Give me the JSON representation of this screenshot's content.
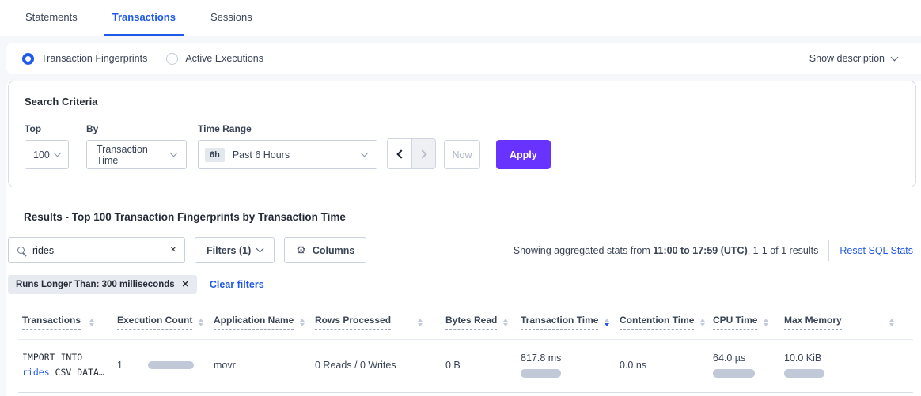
{
  "tabs": [
    {
      "label": "Statements",
      "active": false
    },
    {
      "label": "Transactions",
      "active": true
    },
    {
      "label": "Sessions",
      "active": false
    }
  ],
  "view_toggle": {
    "options": [
      {
        "label": "Transaction Fingerprints",
        "selected": true
      },
      {
        "label": "Active Executions",
        "selected": false
      }
    ],
    "show_description": "Show description"
  },
  "search_criteria": {
    "title": "Search Criteria",
    "top": {
      "label": "Top",
      "value": "100"
    },
    "by": {
      "label": "By",
      "value": "Transaction Time"
    },
    "time_range": {
      "label": "Time Range",
      "badge": "6h",
      "value": "Past 6 Hours"
    },
    "now_label": "Now",
    "apply_label": "Apply"
  },
  "results": {
    "heading": "Results - Top 100 Transaction Fingerprints by Transaction Time",
    "search_value": "rides",
    "filters_label": "Filters (1)",
    "columns_label": "Columns",
    "stats_prefix": "Showing aggregated stats from",
    "stats_range": "11:00 to 17:59 (UTC)",
    "stats_suffix": ", 1-1 of 1 results",
    "reset_label": "Reset SQL Stats",
    "filter_tag": "Runs Longer Than: 300 milliseconds",
    "clear_filters_label": "Clear filters"
  },
  "table": {
    "columns": [
      {
        "label": "Transactions",
        "sort": "none"
      },
      {
        "label": "Execution Count",
        "sort": "none"
      },
      {
        "label": "Application Name",
        "sort": "none"
      },
      {
        "label": "Rows Processed",
        "sort": "none"
      },
      {
        "label": "Bytes Read",
        "sort": "none"
      },
      {
        "label": "Transaction Time",
        "sort": "desc"
      },
      {
        "label": "Contention Time",
        "sort": "none"
      },
      {
        "label": "CPU Time",
        "sort": "none"
      },
      {
        "label": "Max Memory",
        "sort": "none"
      }
    ],
    "row": {
      "transaction_line1": "IMPORT INTO",
      "transaction_link": "rides",
      "transaction_line2_rest": " CSV DATA…",
      "execution_count": "1",
      "application_name": "movr",
      "rows_processed": "0 Reads / 0 Writes",
      "bytes_read": "0 B",
      "transaction_time": "817.8 ms",
      "contention_time": "0.0 ns",
      "cpu_time": "64.0 µs",
      "max_memory": "10.0 KiB"
    }
  },
  "icons": {
    "gear": "⚙",
    "close": "✕"
  },
  "colors": {
    "accent_blue": "#2058e8",
    "apply_purple": "#6933ff",
    "bar_gray": "#c1c8d8"
  }
}
